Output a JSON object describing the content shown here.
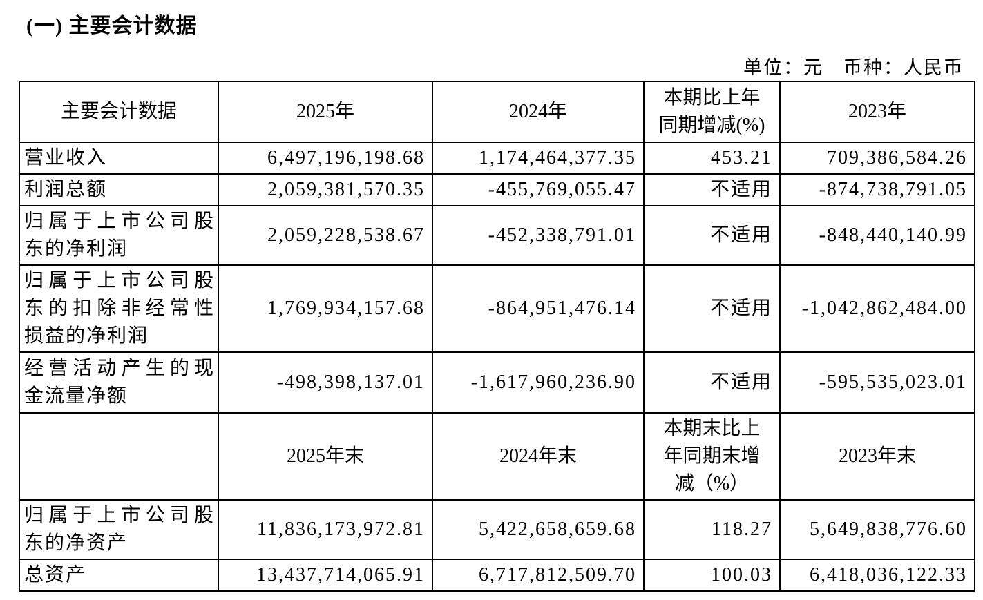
{
  "page": {
    "section_title": "(一) 主要会计数据",
    "unit_note": "单位：元　币种：人民币"
  },
  "table": {
    "period_header": {
      "label": "主要会计数据",
      "col_2025": "2025年",
      "col_2024": "2024年",
      "col_change": "本期比上年\n同期增减(%)",
      "col_2023": "2023年"
    },
    "period_rows": [
      {
        "label": "营业收入",
        "y2025": "6,497,196,198.68",
        "y2024": "1,174,464,377.35",
        "change": "453.21",
        "y2023": "709,386,584.26"
      },
      {
        "label": "利润总额",
        "y2025": "2,059,381,570.35",
        "y2024": "-455,769,055.47",
        "change": "不适用",
        "y2023": "-874,738,791.05"
      },
      {
        "label": "归属于上市公司股\n东的净利润",
        "y2025": "2,059,228,538.67",
        "y2024": "-452,338,791.01",
        "change": "不适用",
        "y2023": "-848,440,140.99"
      },
      {
        "label": "归属于上市公司股\n东的扣除非经常性\n损益的净利润",
        "y2025": "1,769,934,157.68",
        "y2024": "-864,951,476.14",
        "change": "不适用",
        "y2023": "-1,042,862,484.00"
      },
      {
        "label": "经营活动产生的现\n金流量净额",
        "y2025": "-498,398,137.01",
        "y2024": "-1,617,960,236.90",
        "change": "不适用",
        "y2023": "-595,535,023.01"
      }
    ],
    "yearend_header": {
      "label": "",
      "col_2025": "2025年末",
      "col_2024": "2024年末",
      "col_change": "本期末比上\n年同期末增\n减（%）",
      "col_2023": "2023年末"
    },
    "yearend_rows": [
      {
        "label": "归属于上市公司股\n东的净资产",
        "y2025": "11,836,173,972.81",
        "y2024": "5,422,658,659.68",
        "change": "118.27",
        "y2023": "5,649,838,776.60"
      },
      {
        "label": "总资产",
        "y2025": "13,437,714,065.91",
        "y2024": "6,717,812,509.70",
        "change": "100.03",
        "y2023": "6,418,036,122.33"
      }
    ]
  }
}
